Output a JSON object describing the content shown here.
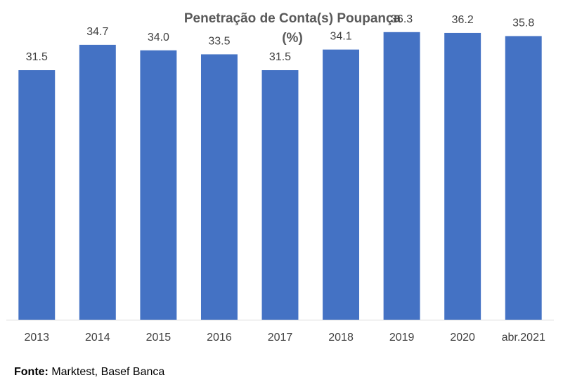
{
  "chart_data": {
    "type": "bar",
    "title": "Penetração de Conta(s) Poupança",
    "subtitle": "(%)",
    "categories": [
      "2013",
      "2014",
      "2015",
      "2016",
      "2017",
      "2018",
      "2019",
      "2020",
      "abr.2021"
    ],
    "values": [
      31.5,
      34.7,
      34.0,
      33.5,
      31.5,
      34.1,
      36.3,
      36.2,
      35.8
    ],
    "value_labels": [
      "31.5",
      "34.7",
      "34.0",
      "33.5",
      "31.5",
      "34.1",
      "36.3",
      "36.2",
      "35.8"
    ],
    "xlabel": "",
    "ylabel": "",
    "ylim": [
      0,
      40
    ],
    "grid": false,
    "legend": "none",
    "colors": {
      "bar": "#4472C4",
      "axis": "#D9D9D9",
      "title": "#595959",
      "label": "#404040"
    }
  },
  "footer": {
    "label": "Fonte:",
    "text": "Marktest, Basef Banca"
  }
}
